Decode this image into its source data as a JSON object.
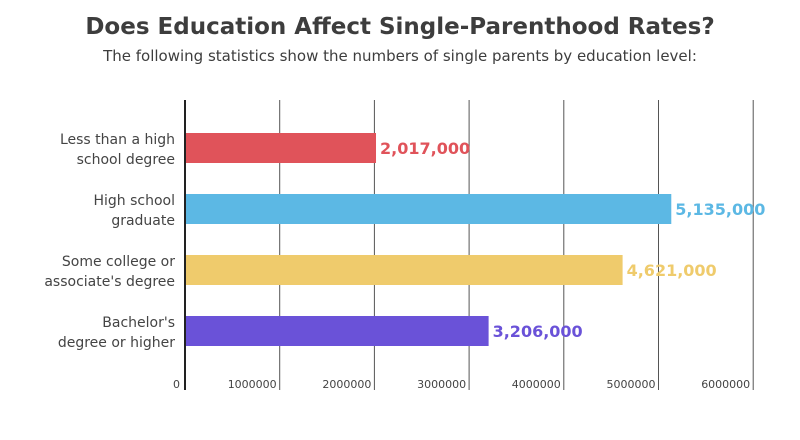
{
  "title": "Does Education Affect Single-Parenthood Rates?",
  "subtitle": "The following statistics show the numbers of single parents by education level:",
  "chart_data": {
    "type": "bar",
    "orientation": "horizontal",
    "categories": [
      [
        "Less than a high",
        "school degree"
      ],
      [
        "High school",
        "graduate"
      ],
      [
        "Some college or",
        "associate's degree"
      ],
      [
        "Bachelor's",
        "degree or higher"
      ]
    ],
    "values": [
      2017000,
      5135000,
      4621000,
      3206000
    ],
    "value_labels": [
      "2,017,000",
      "5,135,000",
      "4,621,000",
      "3,206,000"
    ],
    "colors": [
      "#e0535a",
      "#5cb8e4",
      "#efcb6c",
      "#6a52d8"
    ],
    "xlim": [
      0,
      6000000
    ],
    "xticks": [
      0,
      1000000,
      2000000,
      3000000,
      4000000,
      5000000,
      6000000
    ],
    "xtick_labels": [
      "0",
      "1000000",
      "2000000",
      "3000000",
      "4000000",
      "5000000",
      "6000000"
    ],
    "grid": true,
    "legend": "none"
  }
}
